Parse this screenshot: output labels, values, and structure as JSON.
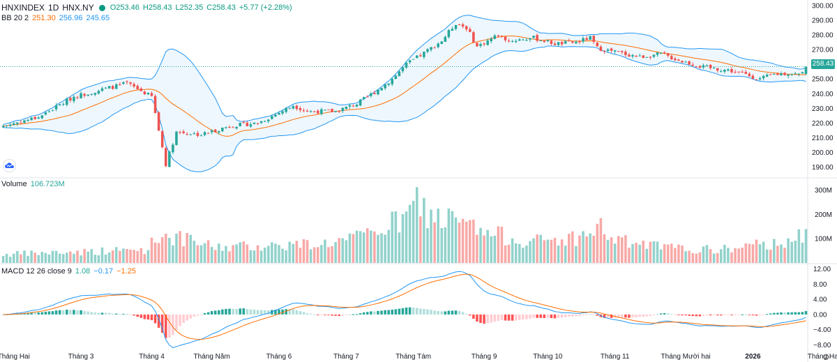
{
  "chart_data": {
    "type": "candlestick",
    "symbol": "HNXINDEX",
    "interval": "1D",
    "exchange": "HNX.NY",
    "ohlc": {
      "open": "O253.46",
      "high": "H258.43",
      "low": "L252.35",
      "close": "C258.43",
      "change": "+5.77 (+2.28%)"
    },
    "last_price": 258.43,
    "last_price_label": "258.43",
    "price_axis": {
      "min": 185,
      "max": 300,
      "ticks": [
        "300.00",
        "290.00",
        "280.00",
        "270.00",
        "260.00",
        "250.00",
        "240.00",
        "230.00",
        "220.00",
        "210.00",
        "200.00",
        "190.00"
      ]
    },
    "bollinger": {
      "label": "BB 20 2",
      "basis": "251.30",
      "upper": "256.96",
      "lower": "245.65"
    },
    "volume": {
      "label": "Volume",
      "value": "106.723M",
      "max": 330,
      "ticks": [
        "300M",
        "200M",
        "100M"
      ]
    },
    "macd": {
      "label": "MACD 12 26 close 9",
      "histogram": "1.08",
      "macd": "−0.17",
      "signal": "−1.25",
      "axis": {
        "min": -9,
        "max": 13,
        "ticks": [
          "12.00",
          "8.00",
          "4.00",
          "0.00",
          "−4.00",
          "−8.00"
        ]
      }
    },
    "time_labels": [
      "Tháng Hai",
      "Tháng 3",
      "Tháng 4",
      "Tháng Năm",
      "Tháng 6",
      "Tháng 7",
      "Tháng Tám",
      "Tháng 9",
      "Tháng 10",
      "Tháng 11",
      "Tháng Mười hai",
      "2026",
      "Tháng Hai"
    ],
    "time_label_bars": [
      3,
      22,
      42,
      59,
      78,
      97,
      116,
      136,
      154,
      173,
      193,
      212,
      232
    ],
    "close_anchors": [
      [
        0,
        218
      ],
      [
        10,
        224
      ],
      [
        20,
        238
      ],
      [
        30,
        244
      ],
      [
        35,
        247
      ],
      [
        42,
        238
      ],
      [
        46,
        192
      ],
      [
        49,
        214
      ],
      [
        56,
        212
      ],
      [
        60,
        215
      ],
      [
        64,
        218
      ],
      [
        72,
        220
      ],
      [
        78,
        227
      ],
      [
        82,
        232
      ],
      [
        86,
        228
      ],
      [
        94,
        228
      ],
      [
        100,
        233
      ],
      [
        105,
        241
      ],
      [
        110,
        250
      ],
      [
        114,
        260
      ],
      [
        118,
        266
      ],
      [
        124,
        276
      ],
      [
        128,
        288
      ],
      [
        131,
        285
      ],
      [
        134,
        272
      ],
      [
        137,
        276
      ],
      [
        140,
        280
      ],
      [
        143,
        276
      ],
      [
        150,
        278
      ],
      [
        156,
        274
      ],
      [
        162,
        275
      ],
      [
        166,
        278
      ],
      [
        168,
        271
      ],
      [
        174,
        268
      ],
      [
        180,
        265
      ],
      [
        186,
        267
      ],
      [
        192,
        262
      ],
      [
        198,
        258
      ],
      [
        205,
        256
      ],
      [
        210,
        253
      ],
      [
        214,
        250
      ],
      [
        218,
        253
      ],
      [
        222,
        254
      ],
      [
        225,
        253
      ],
      [
        227,
        258.43
      ]
    ],
    "volume_anchors": [
      [
        0,
        35
      ],
      [
        20,
        45
      ],
      [
        40,
        55
      ],
      [
        45,
        120
      ],
      [
        50,
        100
      ],
      [
        60,
        65
      ],
      [
        70,
        70
      ],
      [
        80,
        75
      ],
      [
        90,
        80
      ],
      [
        98,
        95
      ],
      [
        102,
        110
      ],
      [
        106,
        140
      ],
      [
        110,
        160
      ],
      [
        114,
        180
      ],
      [
        117,
        260
      ],
      [
        120,
        200
      ],
      [
        124,
        185
      ],
      [
        128,
        170
      ],
      [
        132,
        150
      ],
      [
        136,
        120
      ],
      [
        140,
        115
      ],
      [
        146,
        95
      ],
      [
        150,
        90
      ],
      [
        156,
        95
      ],
      [
        160,
        100
      ],
      [
        166,
        115
      ],
      [
        168,
        160
      ],
      [
        172,
        100
      ],
      [
        178,
        80
      ],
      [
        184,
        70
      ],
      [
        190,
        60
      ],
      [
        196,
        55
      ],
      [
        202,
        55
      ],
      [
        206,
        60
      ],
      [
        212,
        70
      ],
      [
        218,
        80
      ],
      [
        222,
        100
      ],
      [
        227,
        107
      ]
    ]
  }
}
